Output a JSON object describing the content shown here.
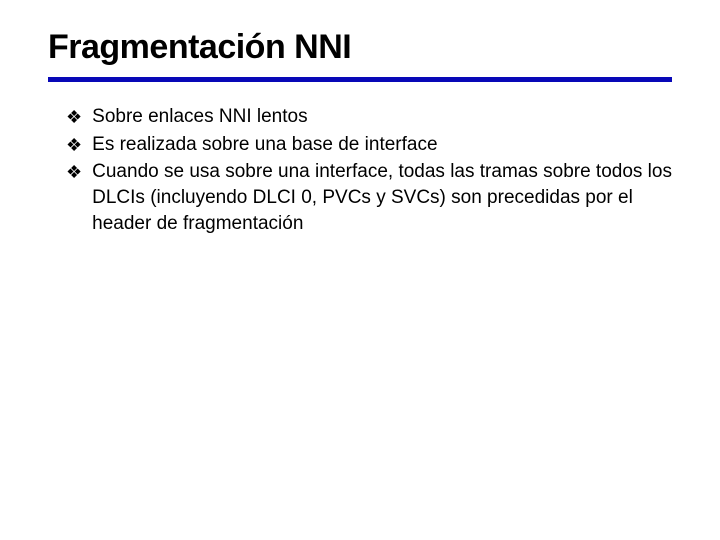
{
  "slide": {
    "title": "Fragmentación NNI",
    "title_color": "#000000",
    "title_fontsize": 34,
    "title_fontweight": 900,
    "underline_color": "#0808b7",
    "underline_thickness": 5,
    "background_color": "#ffffff",
    "bullet_glyph": "❖",
    "bullet_color": "#000000",
    "bullet_fontsize": 18,
    "text_fontsize": 19,
    "text_color": "#000000",
    "bullets": [
      {
        "text": "Sobre enlaces NNI lentos"
      },
      {
        "text": "Es realizada sobre una base de interface"
      },
      {
        "text": "Cuando se usa sobre una interface, todas las tramas sobre todos los DLCIs (incluyendo DLCI 0, PVCs y SVCs) son precedidas por el header de fragmentación"
      }
    ]
  }
}
